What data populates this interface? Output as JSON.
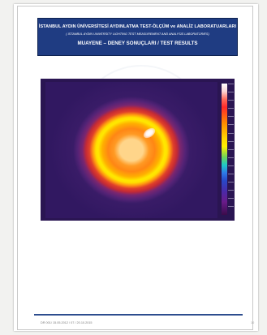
{
  "header": {
    "line1": "İSTANBUL AYDIN ÜNİVERSİTESİ AYDINLATMA TEST-ÖLÇÜM ve ANALİZ LABORATUARLARI",
    "line2": "( ISTANBUL AYDIN UNIVERSITY LIGHTING TEST MEASUREMENT AND ANALYSIS LABORATORIES)",
    "line3": "MUAYENE – DENEY SONUÇLARI / TEST RESULTS",
    "background_color": "#1f3c82"
  },
  "footer": {
    "document_code": "DR 001/ 15.05.2012 / 07 / 20.10.2015",
    "page_number": "10",
    "line_color": "#2d4d8e"
  }
}
